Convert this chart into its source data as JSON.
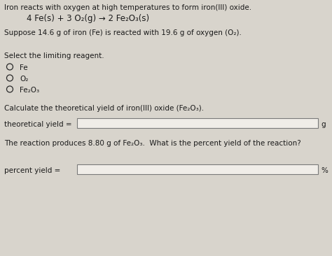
{
  "bg_color": "#d8d4cc",
  "text_color": "#1a1a1a",
  "box_color": "#f0ede8",
  "box_border": "#7a7a7a",
  "radio_color": "#2a2a2a",
  "title_line": "Iron reacts with oxygen at high temperatures to form iron(III) oxide.",
  "equation": "4 Fe(s) + 3 O₂(g) → 2 Fe₂O₃(s)",
  "suppose_line": "Suppose 14.6 g of iron (Fe) is reacted with 19.6 g of oxygen (O₂).",
  "select_label": "Select the limiting reagent.",
  "radio_options": [
    "Fe",
    "O₂",
    "Fe₂O₃"
  ],
  "calc_label": "Calculate the theoretical yield of iron(III) oxide (Fe₂O₃).",
  "theoretical_label": "theoretical yield =",
  "unit_g": "g",
  "reaction_produces": "The reaction produces 8.80 g of Fe₂O₃.  What is the percent yield of the reaction?",
  "percent_label": "percent yield =",
  "unit_pct": "%",
  "font_size": 7.5,
  "font_size_eq": 8.5
}
